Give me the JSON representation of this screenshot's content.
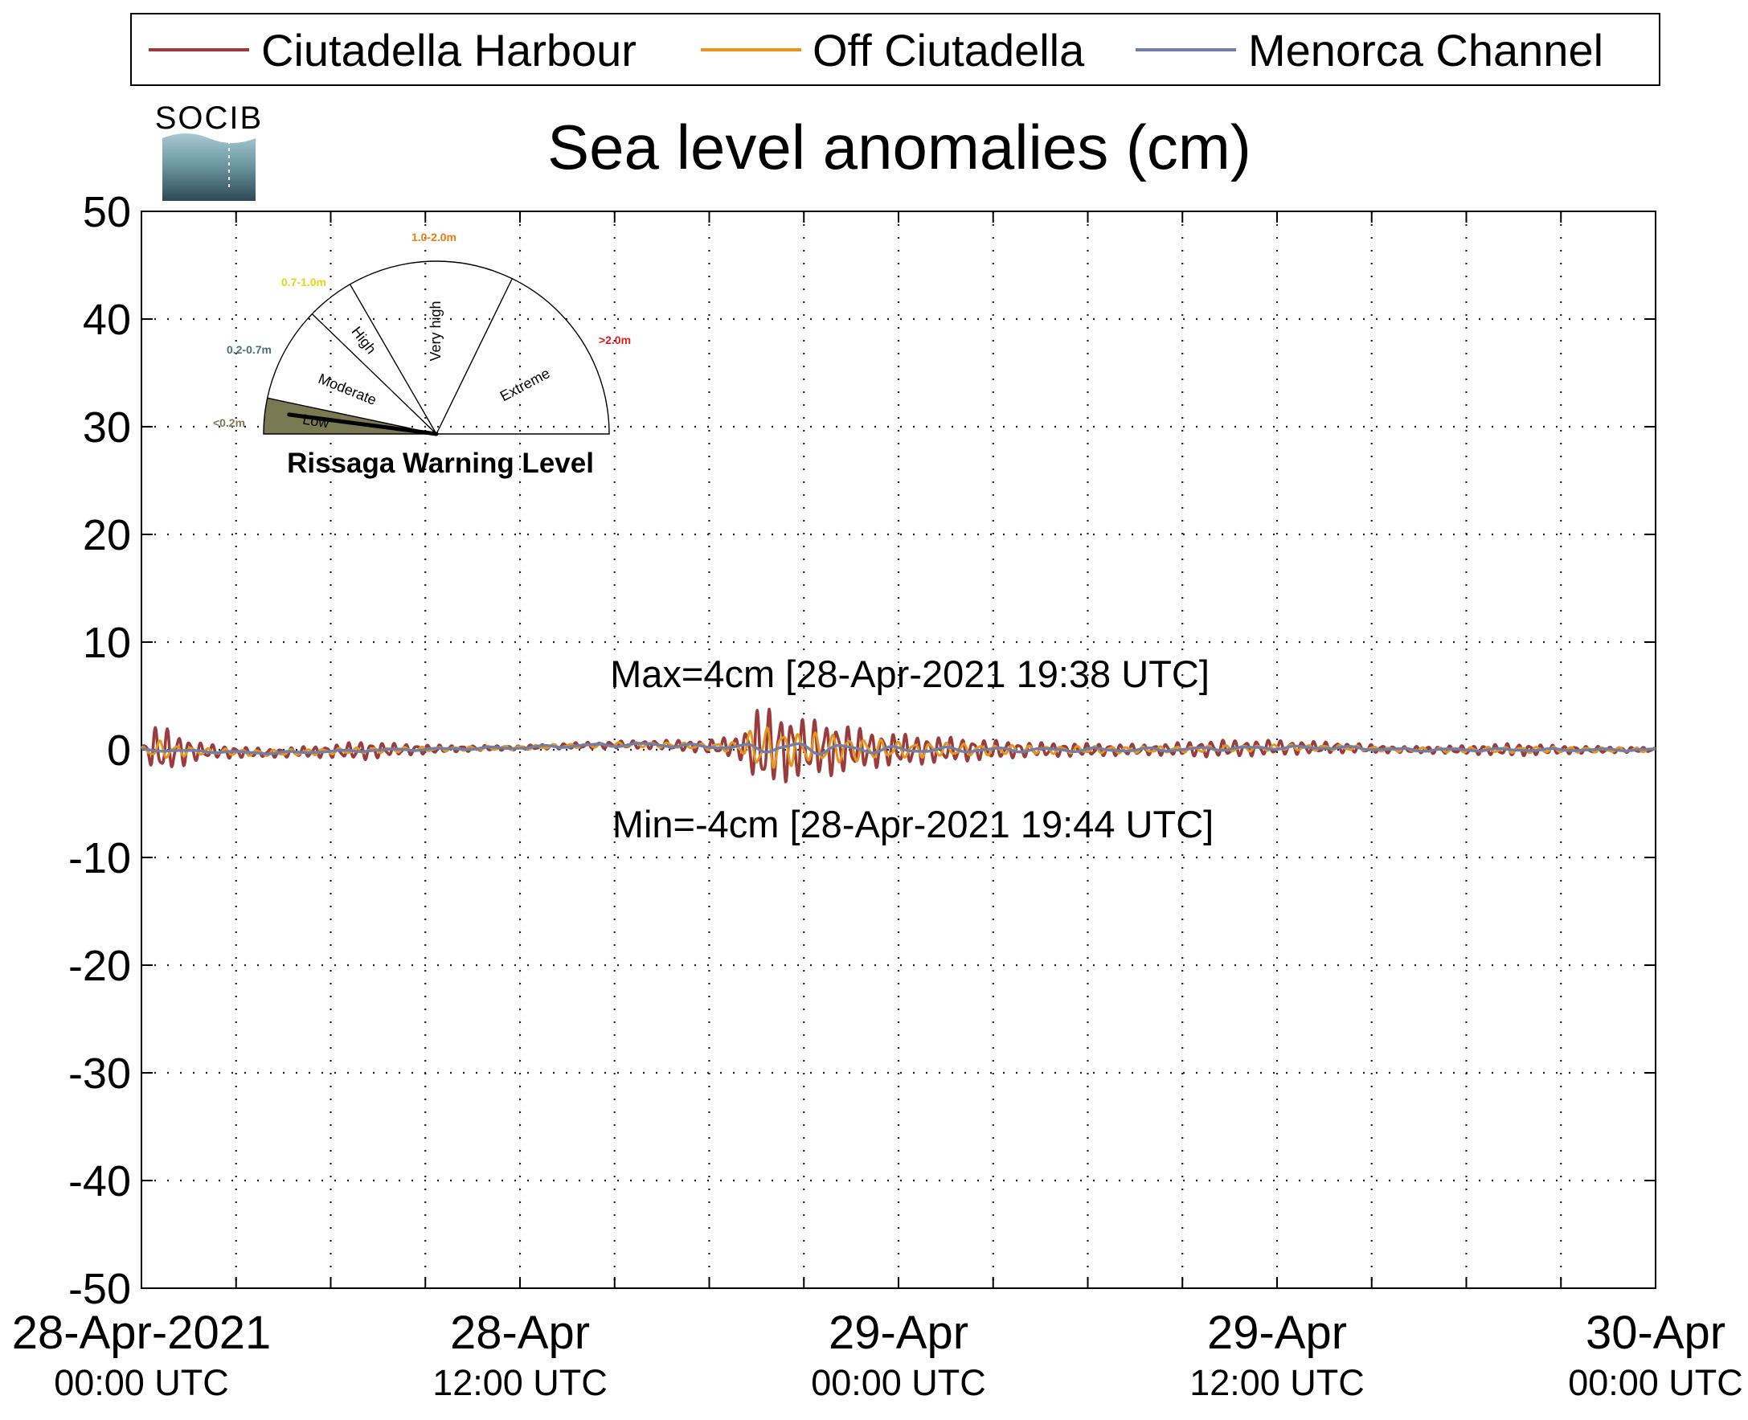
{
  "logo": {
    "text": "SOCIB"
  },
  "colors": {
    "harbour": "#9b3b3b",
    "off": "#e6961e",
    "channel": "#6f7fa8",
    "annotation": "#9b3b3b"
  },
  "legend": {
    "items": [
      {
        "label": "Ciutadella Harbour",
        "color": "#9b3b3b"
      },
      {
        "label": "Off Ciutadella",
        "color": "#e6961e"
      },
      {
        "label": "Menorca Channel",
        "color": "#6f7fa8"
      }
    ]
  },
  "chart_data": {
    "type": "line",
    "title": "Sea level anomalies (cm)",
    "ylim": [
      -50,
      50
    ],
    "y_ticks": [
      "50",
      "40",
      "30",
      "20",
      "10",
      "0",
      "-10",
      "-20",
      "-30",
      "-40",
      "-50"
    ],
    "x_range_hours": [
      0,
      48
    ],
    "x_ticks": [
      {
        "line1": "28-Apr-2021",
        "line2": "00:00 UTC"
      },
      {
        "line1": "28-Apr",
        "line2": "12:00 UTC"
      },
      {
        "line1": "29-Apr",
        "line2": "00:00 UTC"
      },
      {
        "line1": "29-Apr",
        "line2": "12:00 UTC"
      },
      {
        "line1": "30-Apr",
        "line2": "00:00 UTC"
      }
    ],
    "grid": true,
    "legend_position": "top",
    "series": [
      {
        "name": "Ciutadella Harbour",
        "color": "#9b3b3b",
        "envelope": [
          [
            0,
            0.3
          ],
          [
            0.5,
            2.5
          ],
          [
            1,
            1.8
          ],
          [
            1.5,
            1.2
          ],
          [
            2,
            0.7
          ],
          [
            4,
            0.4
          ],
          [
            6,
            0.6
          ],
          [
            7,
            0.9
          ],
          [
            8,
            0.6
          ],
          [
            10,
            0.3
          ],
          [
            12,
            0.2
          ],
          [
            14,
            0.3
          ],
          [
            16,
            0.4
          ],
          [
            18,
            0.6
          ],
          [
            19,
            1.2
          ],
          [
            19.5,
            3.5
          ],
          [
            19.64,
            4.2
          ],
          [
            19.73,
            4.0
          ],
          [
            20,
            3.5
          ],
          [
            21,
            2.8
          ],
          [
            22,
            2.5
          ],
          [
            23,
            1.8
          ],
          [
            24,
            1.5
          ],
          [
            25,
            1.3
          ],
          [
            26,
            1.1
          ],
          [
            28,
            0.7
          ],
          [
            30,
            0.6
          ],
          [
            32,
            0.5
          ],
          [
            34,
            0.8
          ],
          [
            36,
            0.7
          ],
          [
            38,
            0.5
          ],
          [
            40,
            0.3
          ],
          [
            42,
            0.4
          ],
          [
            43.5,
            0.6
          ],
          [
            45,
            0.4
          ],
          [
            48,
            0.2
          ]
        ]
      },
      {
        "name": "Off Ciutadella",
        "color": "#e6961e",
        "envelope": [
          [
            0,
            0.2
          ],
          [
            0.5,
            1.0
          ],
          [
            1,
            0.6
          ],
          [
            2,
            0.3
          ],
          [
            6,
            0.3
          ],
          [
            10,
            0.2
          ],
          [
            14,
            0.2
          ],
          [
            18,
            0.3
          ],
          [
            19,
            0.6
          ],
          [
            19.5,
            2.2
          ],
          [
            20,
            2.0
          ],
          [
            21,
            1.5
          ],
          [
            22,
            1.4
          ],
          [
            23,
            1.0
          ],
          [
            24,
            0.8
          ],
          [
            26,
            0.6
          ],
          [
            28,
            0.4
          ],
          [
            32,
            0.3
          ],
          [
            36,
            0.3
          ],
          [
            40,
            0.2
          ],
          [
            44,
            0.3
          ],
          [
            48,
            0.2
          ]
        ]
      },
      {
        "name": "Menorca Channel",
        "color": "#6f7fa8",
        "envelope": [
          [
            0,
            0.1
          ],
          [
            10,
            0.1
          ],
          [
            19,
            0.2
          ],
          [
            20,
            0.6
          ],
          [
            22,
            0.5
          ],
          [
            24,
            0.3
          ],
          [
            28,
            0.2
          ],
          [
            48,
            0.1
          ]
        ]
      }
    ],
    "baseline": [
      [
        0,
        0
      ],
      [
        4,
        -0.3
      ],
      [
        8,
        0
      ],
      [
        12,
        0.2
      ],
      [
        14,
        0.4
      ],
      [
        16,
        0.5
      ],
      [
        18,
        0.3
      ],
      [
        20,
        0.2
      ],
      [
        24,
        0
      ],
      [
        28,
        0
      ],
      [
        32,
        0
      ],
      [
        36,
        0.2
      ],
      [
        38,
        0.2
      ],
      [
        40,
        0
      ],
      [
        44,
        0
      ],
      [
        48,
        0
      ]
    ],
    "annotations": {
      "max": "Max=4cm [28-Apr-2021 19:38 UTC]",
      "min": "Min=-4cm [28-Apr-2021 19:44 UTC]"
    },
    "gauge": {
      "title": "Rissaga Warning Level",
      "current_level": "Low",
      "sectors": [
        {
          "label": "Low",
          "range": "<0.2m",
          "color": "#7a7a52"
        },
        {
          "label": "Moderate",
          "range": "0.2-0.7m",
          "color": "#4d6f6f"
        },
        {
          "label": "High",
          "range": "0.7-1.0m",
          "color": "#e8d21a"
        },
        {
          "label": "Very high",
          "range": "1.0-2.0m",
          "color": "#f07b14"
        },
        {
          "label": "Extreme",
          "range": ">2.0m",
          "color": "#e01b1b"
        }
      ]
    }
  }
}
